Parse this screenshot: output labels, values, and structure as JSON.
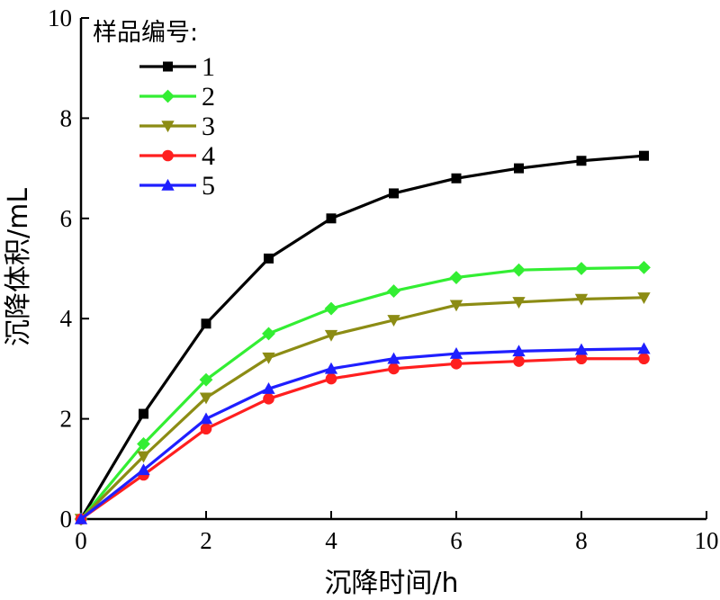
{
  "chart_data": {
    "type": "line",
    "xlabel": "沉降时间/h",
    "ylabel": "沉降体积/mL",
    "xlim": [
      0,
      10
    ],
    "ylim": [
      0,
      10
    ],
    "xticks": [
      0,
      2,
      4,
      6,
      8,
      10
    ],
    "yticks": [
      0,
      2,
      4,
      6,
      8,
      10
    ],
    "grid": false,
    "legend": {
      "title": "样品编号:",
      "placement": "top-left"
    },
    "x": [
      0,
      1,
      2,
      3,
      4,
      5,
      6,
      7,
      8,
      9
    ],
    "series": [
      {
        "name": "1",
        "color": "#000000",
        "marker": "square",
        "values": [
          0,
          2.1,
          3.9,
          5.2,
          6.0,
          6.5,
          6.8,
          7.0,
          7.15,
          7.25
        ]
      },
      {
        "name": "2",
        "color": "#33ee33",
        "marker": "diamond",
        "values": [
          0,
          1.5,
          2.78,
          3.7,
          4.2,
          4.55,
          4.82,
          4.97,
          5.0,
          5.02
        ]
      },
      {
        "name": "3",
        "color": "#8c8c14",
        "marker": "triangle-down",
        "values": [
          0,
          1.25,
          2.42,
          3.22,
          3.67,
          3.97,
          4.27,
          4.33,
          4.39,
          4.42
        ]
      },
      {
        "name": "4",
        "color": "#ff1f1f",
        "marker": "circle",
        "values": [
          0,
          0.88,
          1.8,
          2.4,
          2.8,
          3.0,
          3.1,
          3.15,
          3.2,
          3.2
        ]
      },
      {
        "name": "5",
        "color": "#1f1fff",
        "marker": "triangle-up",
        "values": [
          0,
          0.98,
          2.0,
          2.6,
          3.0,
          3.2,
          3.3,
          3.35,
          3.38,
          3.4
        ]
      }
    ]
  }
}
